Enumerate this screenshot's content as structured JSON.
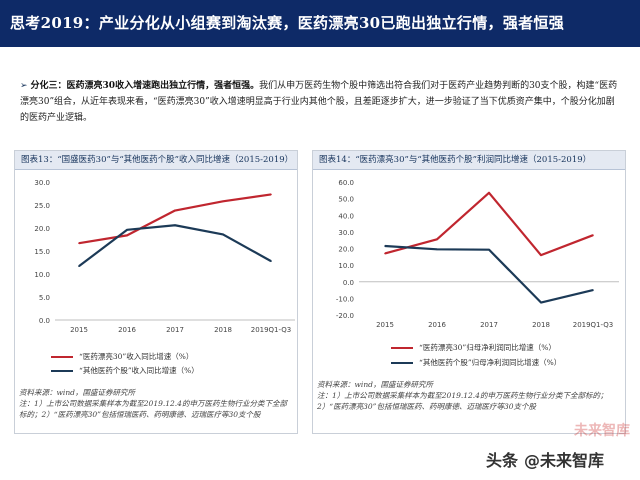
{
  "header": {
    "title": "思考2019：产业分化从小组赛到淘汰赛，医药漂亮30已跑出独立行情，强者恒强"
  },
  "summary": {
    "lead": "分化三：医药漂亮30收入增速跑出独立行情，强者恒强。",
    "body": "我们从申万医药生物个股中筛选出符合我们对于医药产业趋势判断的30支个股，构建“医药漂亮30”组合，从近年表现来看，“医药漂亮30”收入增速明显高于行业内其他个股，且差距逐步扩大，进一步验证了当下优质资产集中，个股分化加剧的医药产业逻辑。"
  },
  "colors": {
    "red": "#c0262f",
    "navy": "#1c3a57",
    "header_bg": "#0e2a67"
  },
  "chart_data": [
    {
      "type": "line",
      "title": "图表13：“国盛医药30”与“其他医药个股”收入同比增速（2015-2019）",
      "categories": [
        "2015",
        "2016",
        "2017",
        "2018",
        "2019Q1-Q3"
      ],
      "y_ticks": [
        "0.0",
        "5.0",
        "10.0",
        "15.0",
        "20.0",
        "25.0",
        "30.0"
      ],
      "ylim": [
        0,
        30
      ],
      "series": [
        {
          "name": "“医药漂亮30”收入同比增速（%）",
          "color": "#c0262f",
          "values": [
            16.7,
            18.4,
            23.8,
            25.8,
            27.3
          ]
        },
        {
          "name": "“其他医药个股”收入同比增速（%）",
          "color": "#1c3a57",
          "values": [
            11.7,
            19.6,
            20.6,
            18.6,
            12.8
          ]
        }
      ],
      "source": [
        "资料来源：wind，国盛证券研究所",
        "注：1）上市公司数据采集样本为截至2019.12.4的申万医药生物行业分类下全部标的；2）“医药漂亮30”包括恒瑞医药、药明康德、迈瑞医疗等30支个股"
      ]
    },
    {
      "type": "line",
      "title": "图表14：“医药漂亮30”与“其他医药个股”利润同比增速（2015-2019）",
      "categories": [
        "2015",
        "2016",
        "2017",
        "2018",
        "2019Q1-Q3"
      ],
      "y_ticks": [
        "-20.0",
        "-10.0",
        "0.0",
        "10.0",
        "20.0",
        "30.0",
        "40.0",
        "50.0",
        "60.0"
      ],
      "ylim": [
        -20,
        60
      ],
      "series": [
        {
          "name": "“医药漂亮30”归母净利润同比增速（%）",
          "color": "#c0262f",
          "values": [
            17,
            25.5,
            53.5,
            16,
            28
          ]
        },
        {
          "name": "“其他医药个股”归母净利润同比增速（%）",
          "color": "#1c3a57",
          "values": [
            21.5,
            19.5,
            19.3,
            -12.5,
            -5
          ]
        }
      ],
      "source": [
        "资料来源：wind，国盛证券研究所",
        "注：1）上市公司数据采集样本为截至2019.12.4的申万医药生物行业分类下全部标的；2）“医药漂亮30”包括恒瑞医药、药明康德、迈瑞医疗等30支个股"
      ]
    }
  ],
  "watermark": {
    "label": "头条",
    "brand": "@未来智库",
    "brand_faint": "未来智库"
  }
}
